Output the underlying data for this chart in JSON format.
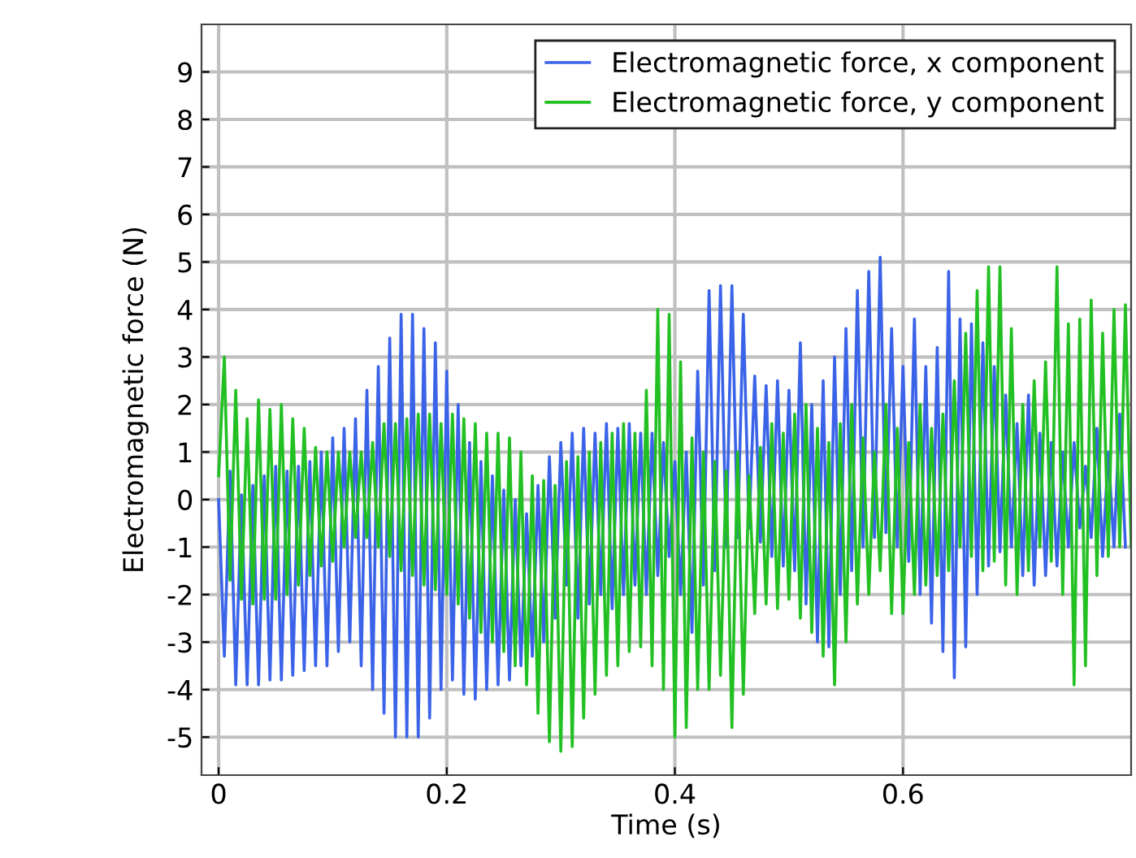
{
  "chart_data": {
    "type": "line",
    "xlabel": "Time (s)",
    "ylabel": "Electromagnetic force (N)",
    "x": [
      0,
      0.005,
      0.01,
      0.015,
      0.02,
      0.025,
      0.03,
      0.035,
      0.04,
      0.045,
      0.05,
      0.055,
      0.06,
      0.065,
      0.07,
      0.075,
      0.08,
      0.085,
      0.09,
      0.095,
      0.1,
      0.105,
      0.11,
      0.115,
      0.12,
      0.125,
      0.13,
      0.135,
      0.14,
      0.145,
      0.15,
      0.155,
      0.16,
      0.165,
      0.17,
      0.175,
      0.18,
      0.185,
      0.19,
      0.195,
      0.2,
      0.205,
      0.21,
      0.215,
      0.22,
      0.225,
      0.23,
      0.235,
      0.24,
      0.245,
      0.25,
      0.255,
      0.26,
      0.265,
      0.27,
      0.275,
      0.28,
      0.285,
      0.29,
      0.295,
      0.3,
      0.305,
      0.31,
      0.315,
      0.32,
      0.325,
      0.33,
      0.335,
      0.34,
      0.345,
      0.35,
      0.355,
      0.36,
      0.365,
      0.37,
      0.375,
      0.38,
      0.385,
      0.39,
      0.395,
      0.4,
      0.405,
      0.41,
      0.415,
      0.42,
      0.425,
      0.43,
      0.435,
      0.44,
      0.445,
      0.45,
      0.455,
      0.46,
      0.465,
      0.47,
      0.475,
      0.48,
      0.485,
      0.49,
      0.495,
      0.5,
      0.505,
      0.51,
      0.515,
      0.52,
      0.525,
      0.53,
      0.535,
      0.54,
      0.545,
      0.55,
      0.555,
      0.56,
      0.565,
      0.57,
      0.575,
      0.58,
      0.585,
      0.59,
      0.595,
      0.6,
      0.605,
      0.61,
      0.615,
      0.62,
      0.625,
      0.63,
      0.635,
      0.64,
      0.645,
      0.65,
      0.655,
      0.66,
      0.665,
      0.67,
      0.675,
      0.68,
      0.685,
      0.69,
      0.695,
      0.7,
      0.705,
      0.71,
      0.715,
      0.72,
      0.725,
      0.73,
      0.735,
      0.74,
      0.745,
      0.75,
      0.755,
      0.76,
      0.765,
      0.77,
      0.775,
      0.78,
      0.785,
      0.79,
      0.795,
      0.8
    ],
    "series": [
      {
        "name": "Electromagnetic force, x component",
        "color": "#3a63e8",
        "values": [
          0,
          -3.3,
          0.6,
          -3.9,
          0.1,
          -3.9,
          0.3,
          -3.9,
          0.5,
          -3.8,
          0.7,
          -3.8,
          0.6,
          -3.7,
          0.7,
          -3.6,
          0.8,
          -3.5,
          1.0,
          -3.5,
          1.3,
          -3.2,
          1.5,
          -3.0,
          1.7,
          -3.5,
          2.3,
          -4.0,
          2.8,
          -4.5,
          3.4,
          -5.0,
          3.9,
          -5.0,
          3.9,
          -5.0,
          3.6,
          -4.6,
          3.3,
          -4.0,
          2.7,
          -3.8,
          2.0,
          -4.1,
          1.2,
          -4.2,
          0.8,
          -4.0,
          0.5,
          -3.9,
          0.2,
          -3.8,
          0.0,
          -3.5,
          -0.3,
          -3.3,
          0.3,
          -3.0,
          0.9,
          -2.5,
          1.2,
          -1.8,
          1.4,
          -2.5,
          1.5,
          -2.2,
          1.4,
          -2.0,
          1.6,
          -2.3,
          1.5,
          -2.0,
          1.6,
          -1.8,
          1.4,
          -2.0,
          1.4,
          -1.6,
          1.2,
          -1.2,
          0.8,
          -2.0,
          1.0,
          -2.8,
          2.7,
          -1.8,
          4.4,
          -1.5,
          4.5,
          -1.0,
          4.5,
          -0.8,
          3.9,
          -0.6,
          2.6,
          -0.9,
          2.4,
          -1.2,
          2.5,
          -1.4,
          2.3,
          -1.5,
          3.3,
          -2.2,
          2.0,
          -3.0,
          2.5,
          -3.1,
          3.0,
          -2.0,
          3.6,
          -1.5,
          4.4,
          -1.0,
          4.8,
          -0.8,
          5.1,
          -0.7,
          3.6,
          -1.0,
          2.8,
          -1.3,
          3.8,
          -2.0,
          2.8,
          -2.6,
          3.2,
          -3.2,
          4.8,
          -3.75,
          3.8,
          -3.1,
          3.7,
          -2.0,
          3.3,
          -1.4,
          2.8,
          -1.1,
          2.2,
          -1.0,
          1.6,
          -1.6,
          2.2,
          -1.8,
          1.4,
          -1.6,
          1.2,
          -1.4,
          1.0,
          -1.0,
          1.2,
          -0.6,
          0.7,
          -0.8,
          1.5,
          -1.2,
          1.0,
          -1.0,
          1.8,
          -1.0,
          null
        ]
      },
      {
        "name": "Electromagnetic force, y component",
        "color": "#22c022",
        "values": [
          0.5,
          3.0,
          -1.7,
          2.3,
          -2.1,
          1.7,
          -2.2,
          2.1,
          -2.1,
          1.9,
          -2.1,
          2.0,
          -2.0,
          1.7,
          -1.8,
          1.5,
          -1.6,
          1.1,
          -1.4,
          1.0,
          -1.3,
          1.0,
          -1.0,
          1.0,
          -0.8,
          1.0,
          -0.8,
          1.2,
          -1.0,
          1.6,
          -1.2,
          1.6,
          -1.5,
          1.7,
          -1.6,
          1.8,
          -1.8,
          1.8,
          -1.9,
          1.6,
          -2.0,
          1.8,
          -2.2,
          1.7,
          -2.5,
          1.6,
          -2.8,
          1.4,
          -3.0,
          1.4,
          -3.2,
          1.3,
          -3.5,
          1.0,
          -3.9,
          0.5,
          -4.5,
          0.4,
          -5.1,
          0.3,
          -5.3,
          0.8,
          -5.2,
          0.9,
          -4.6,
          1.0,
          -4.1,
          1.2,
          -3.7,
          1.4,
          -3.5,
          1.6,
          -3.2,
          1.4,
          -3.1,
          2.3,
          -3.5,
          4.0,
          -4.0,
          3.9,
          -5.0,
          2.9,
          -4.8,
          1.3,
          -4.0,
          1.0,
          -4.0,
          0.8,
          -3.7,
          0.6,
          -4.8,
          1.0,
          -4.1,
          0.5,
          -2.4,
          1.1,
          -2.2,
          1.6,
          -2.3,
          1.4,
          -2.1,
          1.8,
          -2.5,
          2.0,
          -2.8,
          1.5,
          -3.3,
          1.2,
          -3.9,
          1.6,
          -3.0,
          2.0,
          -2.2,
          1.3,
          -2.0,
          1.0,
          -1.5,
          2.0,
          -2.4,
          1.5,
          -2.4,
          1.2,
          -2.0,
          2.0,
          -1.8,
          1.5,
          -1.6,
          1.8,
          -1.5,
          2.5,
          -1.0,
          3.5,
          -1.2,
          4.4,
          -1.5,
          4.9,
          -1.3,
          4.9,
          -1.8,
          3.6,
          -2.0,
          2.0,
          -1.5,
          2.5,
          -1.0,
          2.9,
          -1.3,
          4.9,
          -2.0,
          3.7,
          -3.9,
          3.8,
          -3.5,
          4.2,
          -1.6,
          3.5,
          -1.2,
          4.0,
          -1.0,
          4.1,
          -1.0
        ]
      }
    ],
    "xlim": [
      -0.015,
      0.8
    ],
    "ylim": [
      -5.8,
      10
    ],
    "xticks": [
      0,
      0.2,
      0.4,
      0.6
    ],
    "yticks": [
      -5,
      -4,
      -3,
      -2,
      -1,
      0,
      1,
      2,
      3,
      4,
      5,
      6,
      7,
      8,
      9
    ],
    "grid": true,
    "legend": "top right",
    "marker": "none",
    "line_style": "solid"
  }
}
